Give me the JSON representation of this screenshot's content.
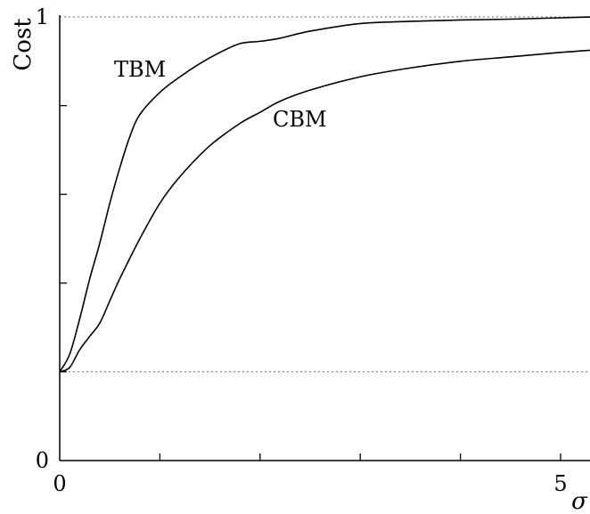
{
  "chart_data": {
    "type": "line",
    "title": "",
    "xlabel": "σ",
    "ylabel": "Cost",
    "xlim": [
      0,
      5.3
    ],
    "ylim": [
      0,
      1
    ],
    "xticks": [
      0,
      1,
      2,
      3,
      4,
      5
    ],
    "xtick_labels": [
      "0",
      "",
      "",
      "",
      "",
      "5"
    ],
    "yticks": [
      0,
      0.2,
      0.4,
      0.6,
      0.8,
      1
    ],
    "ytick_labels": [
      "0",
      "",
      "",
      "",
      "",
      "1"
    ],
    "grid": false,
    "reference_lines": [
      {
        "orientation": "horizontal",
        "y": 1.0,
        "style": "dotted"
      },
      {
        "orientation": "horizontal",
        "y": 0.2,
        "style": "dotted"
      }
    ],
    "series": [
      {
        "name": "TBM",
        "x": [
          0,
          0.1,
          0.2,
          0.3,
          0.4,
          0.5,
          0.6,
          0.7,
          0.8,
          1.0,
          1.2,
          1.4,
          1.6,
          1.8,
          2.0,
          2.2,
          2.5,
          3.0,
          3.5,
          4.0,
          4.5,
          5.0,
          5.3
        ],
        "y": [
          0.2,
          0.24,
          0.32,
          0.41,
          0.49,
          0.58,
          0.66,
          0.73,
          0.78,
          0.83,
          0.865,
          0.895,
          0.92,
          0.94,
          0.945,
          0.952,
          0.968,
          0.985,
          0.99,
          0.993,
          0.995,
          0.998,
          1.0
        ]
      },
      {
        "name": "CBM",
        "x": [
          0,
          0.1,
          0.2,
          0.3,
          0.4,
          0.5,
          0.6,
          0.8,
          1.0,
          1.2,
          1.5,
          1.8,
          2.0,
          2.2,
          2.5,
          3.0,
          3.5,
          4.0,
          4.5,
          5.0,
          5.3
        ],
        "y": [
          0.2,
          0.21,
          0.25,
          0.28,
          0.31,
          0.36,
          0.41,
          0.5,
          0.58,
          0.64,
          0.71,
          0.76,
          0.785,
          0.81,
          0.835,
          0.865,
          0.885,
          0.9,
          0.91,
          0.92,
          0.925
        ]
      }
    ]
  }
}
